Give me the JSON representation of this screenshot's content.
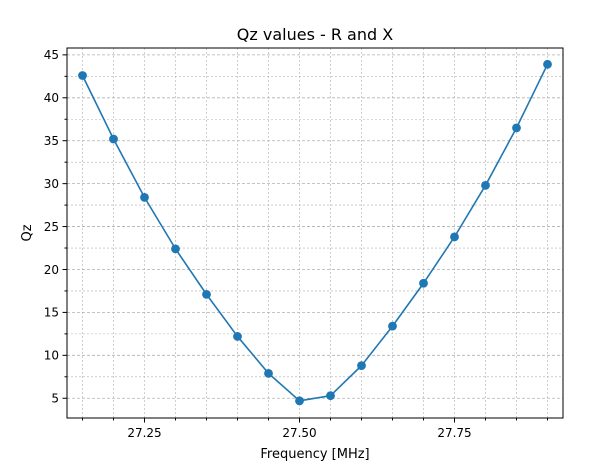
{
  "chart_data": {
    "type": "line",
    "title": "Qz values - R and X",
    "xlabel": "Frequency [MHz]",
    "ylabel": "Qz",
    "xlim": [
      27.125,
      27.925
    ],
    "ylim": [
      2.7,
      45.8
    ],
    "x_major_ticks": [
      27.25,
      27.5,
      27.75
    ],
    "x_tick_labels": [
      "27.25",
      "27.50",
      "27.75"
    ],
    "x_minor_ticks": [
      27.15,
      27.2,
      27.25,
      27.3,
      27.35,
      27.4,
      27.45,
      27.5,
      27.55,
      27.6,
      27.65,
      27.7,
      27.75,
      27.8,
      27.85,
      27.9
    ],
    "y_major_ticks": [
      5,
      10,
      15,
      20,
      25,
      30,
      35,
      40,
      45
    ],
    "y_tick_labels": [
      "5",
      "10",
      "15",
      "20",
      "25",
      "30",
      "35",
      "40",
      "45"
    ],
    "y_minor_ticks": [
      7.5,
      12.5,
      17.5,
      22.5,
      27.5,
      32.5,
      37.5,
      42.5
    ],
    "grid": true,
    "series": [
      {
        "color": "#1f77b4",
        "marker": "circle",
        "x": [
          27.15,
          27.2,
          27.25,
          27.3,
          27.35,
          27.4,
          27.45,
          27.5,
          27.55,
          27.6,
          27.65,
          27.7,
          27.75,
          27.8,
          27.85,
          27.9
        ],
        "y": [
          42.6,
          35.2,
          28.4,
          22.4,
          17.1,
          12.2,
          7.9,
          4.7,
          5.3,
          8.8,
          13.4,
          18.4,
          23.8,
          29.8,
          36.5,
          43.9
        ]
      }
    ]
  }
}
